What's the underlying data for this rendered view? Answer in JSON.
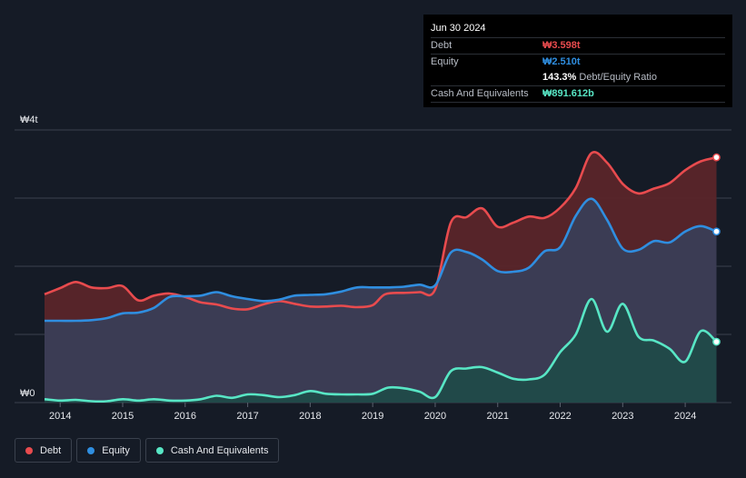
{
  "chart_data": {
    "type": "area",
    "y_top_label": "₩4t",
    "y_bottom_label": "₩0",
    "x_tick_labels": [
      "2014",
      "2015",
      "2016",
      "2017",
      "2018",
      "2019",
      "2020",
      "2021",
      "2022",
      "2023",
      "2024"
    ],
    "x_ticks": [
      2014,
      2015,
      2016,
      2017,
      2018,
      2019,
      2020,
      2021,
      2022,
      2023,
      2024
    ],
    "xlim": [
      2013.27,
      2024.74
    ],
    "ylim": [
      0,
      4.0
    ],
    "unit": "trillion KRW",
    "series": [
      {
        "name": "Debt",
        "color": "#e84b4e",
        "points": [
          [
            2013.75,
            1.59
          ],
          [
            2014.0,
            1.68
          ],
          [
            2014.25,
            1.77
          ],
          [
            2014.5,
            1.69
          ],
          [
            2014.75,
            1.68
          ],
          [
            2015.0,
            1.71
          ],
          [
            2015.25,
            1.5
          ],
          [
            2015.5,
            1.57
          ],
          [
            2015.75,
            1.6
          ],
          [
            2016.0,
            1.55
          ],
          [
            2016.25,
            1.47
          ],
          [
            2016.5,
            1.44
          ],
          [
            2016.75,
            1.38
          ],
          [
            2017.0,
            1.37
          ],
          [
            2017.25,
            1.44
          ],
          [
            2017.5,
            1.49
          ],
          [
            2017.75,
            1.45
          ],
          [
            2018.0,
            1.41
          ],
          [
            2018.25,
            1.41
          ],
          [
            2018.5,
            1.42
          ],
          [
            2018.75,
            1.4
          ],
          [
            2019.0,
            1.43
          ],
          [
            2019.2,
            1.59
          ],
          [
            2019.5,
            1.61
          ],
          [
            2019.75,
            1.62
          ],
          [
            2020.0,
            1.66
          ],
          [
            2020.25,
            2.64
          ],
          [
            2020.5,
            2.72
          ],
          [
            2020.75,
            2.85
          ],
          [
            2021.0,
            2.58
          ],
          [
            2021.25,
            2.64
          ],
          [
            2021.5,
            2.73
          ],
          [
            2021.75,
            2.71
          ],
          [
            2022.0,
            2.86
          ],
          [
            2022.25,
            3.15
          ],
          [
            2022.5,
            3.66
          ],
          [
            2022.75,
            3.52
          ],
          [
            2023.0,
            3.21
          ],
          [
            2023.25,
            3.07
          ],
          [
            2023.5,
            3.14
          ],
          [
            2023.75,
            3.22
          ],
          [
            2024.0,
            3.41
          ],
          [
            2024.25,
            3.54
          ],
          [
            2024.5,
            3.598
          ]
        ]
      },
      {
        "name": "Equity",
        "color": "#2f8ee0",
        "points": [
          [
            2013.75,
            1.2
          ],
          [
            2014.0,
            1.2
          ],
          [
            2014.25,
            1.2
          ],
          [
            2014.5,
            1.21
          ],
          [
            2014.75,
            1.24
          ],
          [
            2015.0,
            1.31
          ],
          [
            2015.25,
            1.32
          ],
          [
            2015.5,
            1.39
          ],
          [
            2015.75,
            1.55
          ],
          [
            2016.0,
            1.56
          ],
          [
            2016.25,
            1.57
          ],
          [
            2016.5,
            1.62
          ],
          [
            2016.75,
            1.56
          ],
          [
            2017.0,
            1.52
          ],
          [
            2017.25,
            1.49
          ],
          [
            2017.5,
            1.51
          ],
          [
            2017.75,
            1.57
          ],
          [
            2018.0,
            1.58
          ],
          [
            2018.25,
            1.59
          ],
          [
            2018.5,
            1.63
          ],
          [
            2018.75,
            1.69
          ],
          [
            2019.0,
            1.69
          ],
          [
            2019.25,
            1.69
          ],
          [
            2019.5,
            1.7
          ],
          [
            2019.75,
            1.73
          ],
          [
            2020.0,
            1.72
          ],
          [
            2020.25,
            2.2
          ],
          [
            2020.5,
            2.21
          ],
          [
            2020.75,
            2.1
          ],
          [
            2021.0,
            1.93
          ],
          [
            2021.25,
            1.92
          ],
          [
            2021.5,
            1.98
          ],
          [
            2021.75,
            2.22
          ],
          [
            2022.0,
            2.28
          ],
          [
            2022.25,
            2.74
          ],
          [
            2022.5,
            2.99
          ],
          [
            2022.75,
            2.68
          ],
          [
            2023.0,
            2.26
          ],
          [
            2023.25,
            2.24
          ],
          [
            2023.5,
            2.37
          ],
          [
            2023.75,
            2.35
          ],
          [
            2024.0,
            2.51
          ],
          [
            2024.25,
            2.59
          ],
          [
            2024.5,
            2.51
          ]
        ]
      },
      {
        "name": "Cash And Equivalents",
        "color": "#58e6c5",
        "points": [
          [
            2013.75,
            0.05
          ],
          [
            2014.0,
            0.03
          ],
          [
            2014.25,
            0.04
          ],
          [
            2014.5,
            0.02
          ],
          [
            2014.75,
            0.02
          ],
          [
            2015.0,
            0.05
          ],
          [
            2015.25,
            0.03
          ],
          [
            2015.5,
            0.05
          ],
          [
            2015.75,
            0.03
          ],
          [
            2016.0,
            0.03
          ],
          [
            2016.25,
            0.05
          ],
          [
            2016.5,
            0.1
          ],
          [
            2016.75,
            0.07
          ],
          [
            2017.0,
            0.12
          ],
          [
            2017.25,
            0.11
          ],
          [
            2017.5,
            0.08
          ],
          [
            2017.75,
            0.11
          ],
          [
            2018.0,
            0.17
          ],
          [
            2018.25,
            0.13
          ],
          [
            2018.5,
            0.12
          ],
          [
            2018.75,
            0.12
          ],
          [
            2019.0,
            0.13
          ],
          [
            2019.25,
            0.22
          ],
          [
            2019.5,
            0.21
          ],
          [
            2019.75,
            0.16
          ],
          [
            2020.0,
            0.08
          ],
          [
            2020.25,
            0.46
          ],
          [
            2020.5,
            0.5
          ],
          [
            2020.75,
            0.52
          ],
          [
            2021.0,
            0.44
          ],
          [
            2021.25,
            0.35
          ],
          [
            2021.5,
            0.34
          ],
          [
            2021.75,
            0.41
          ],
          [
            2022.0,
            0.74
          ],
          [
            2022.25,
            1.0
          ],
          [
            2022.5,
            1.52
          ],
          [
            2022.75,
            1.04
          ],
          [
            2023.0,
            1.45
          ],
          [
            2023.25,
            0.97
          ],
          [
            2023.5,
            0.91
          ],
          [
            2023.75,
            0.79
          ],
          [
            2024.0,
            0.6
          ],
          [
            2024.25,
            1.05
          ],
          [
            2024.5,
            0.892
          ]
        ]
      }
    ]
  },
  "tooltip": {
    "date": "Jun 30 2024",
    "rows": [
      {
        "label": "Debt",
        "value": "₩3.598t",
        "color": "#e84b4e"
      },
      {
        "label": "Equity",
        "value": "₩2.510t",
        "color": "#2f8ee0"
      },
      {
        "ratio_value": "143.3%",
        "ratio_label": "Debt/Equity Ratio"
      },
      {
        "label": "Cash And Equivalents",
        "value": "₩891.612b",
        "color": "#58e6c5"
      }
    ]
  },
  "legend": [
    {
      "label": "Debt",
      "color": "#e84b4e"
    },
    {
      "label": "Equity",
      "color": "#2f8ee0"
    },
    {
      "label": "Cash And Equivalents",
      "color": "#58e6c5"
    }
  ],
  "colors": {
    "background": "#151b26",
    "grid": "#3a414d",
    "debt_fill": "#5a2529",
    "equity_fill": "#3a3e56",
    "cash_fill": "#1f4a48"
  }
}
